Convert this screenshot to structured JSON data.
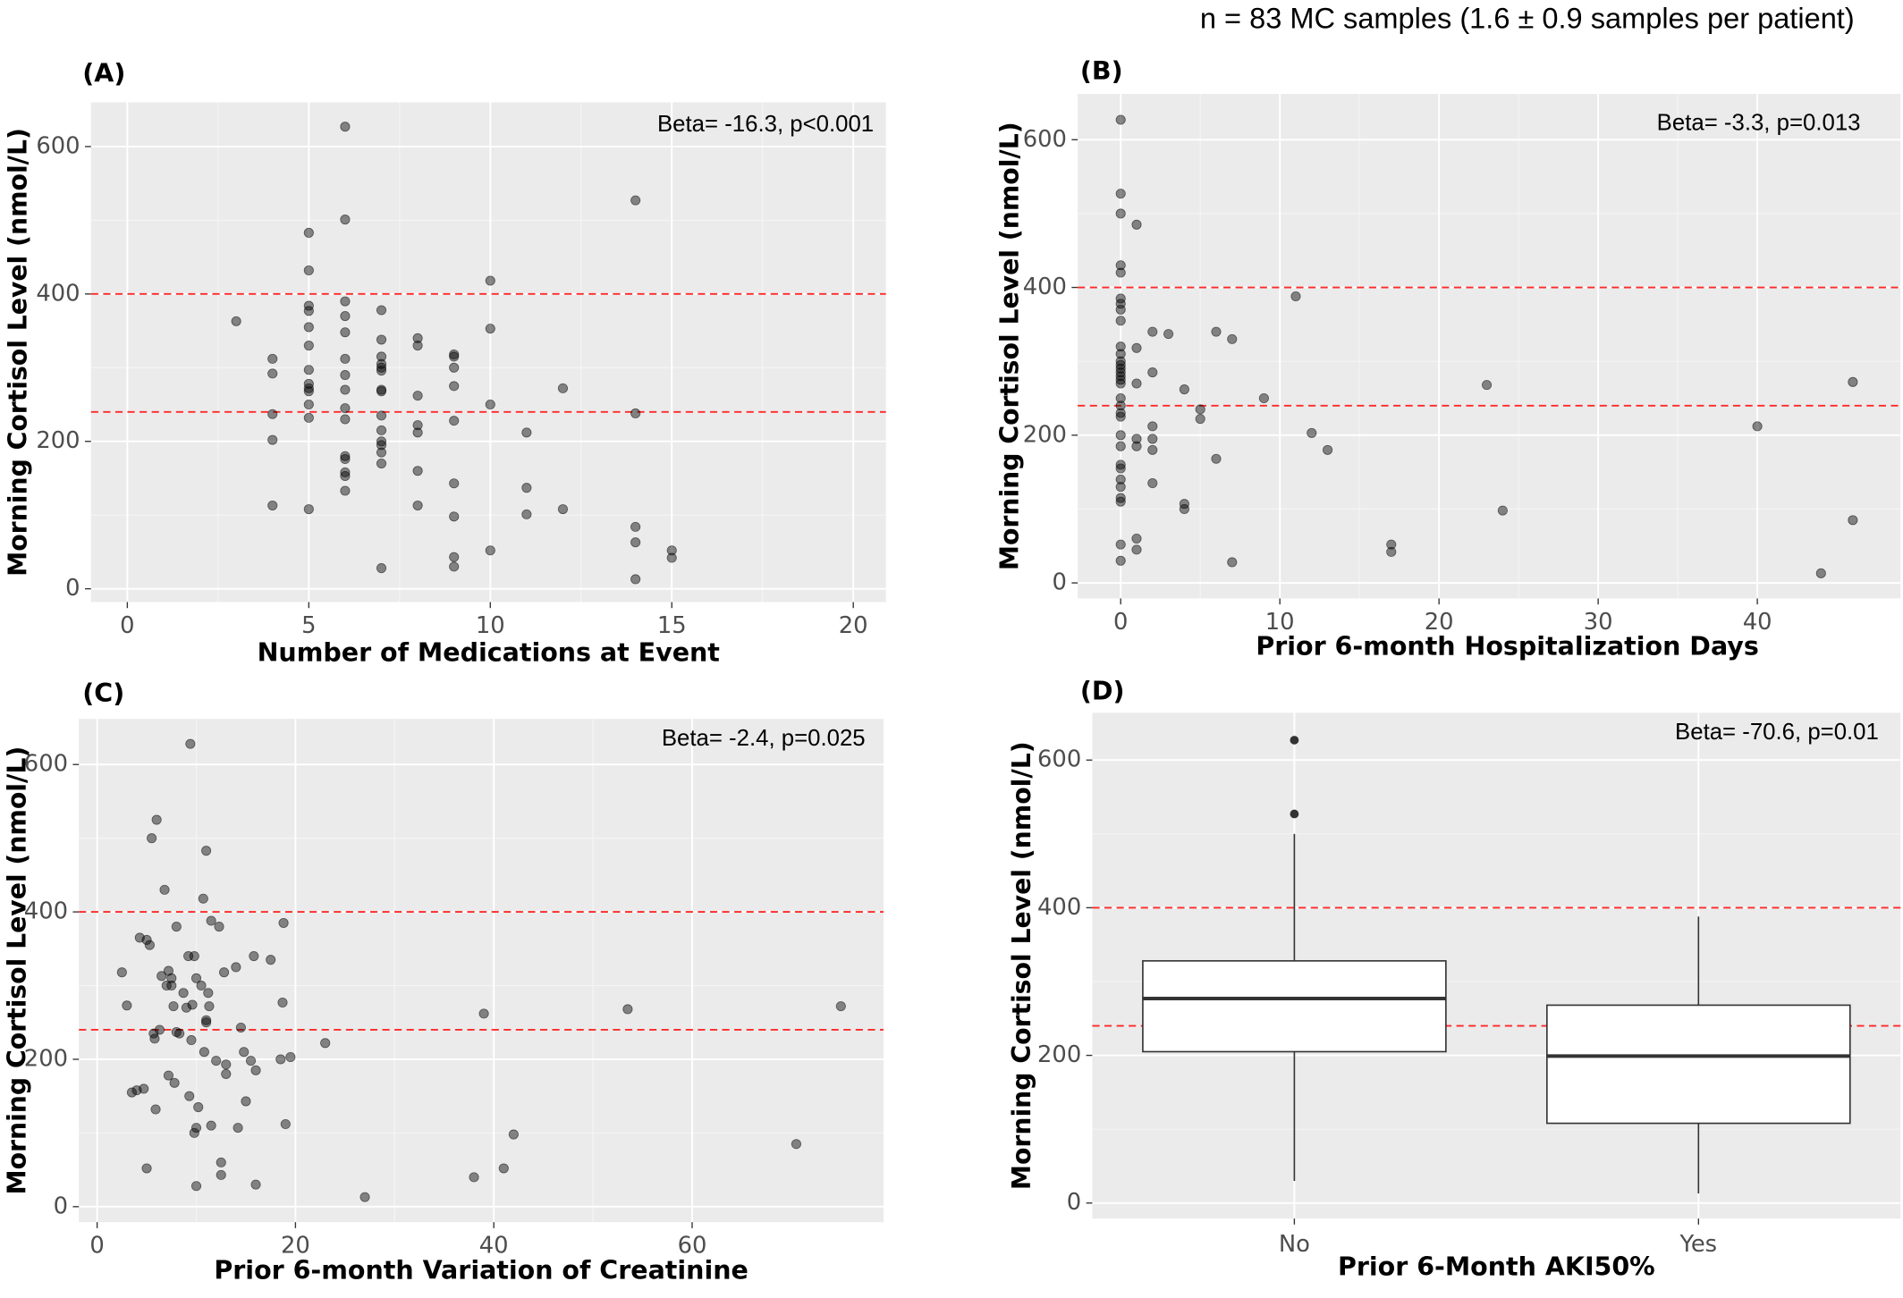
{
  "title": "n = 83 MC samples (1.6 ± 0.9 samples per patient)",
  "chart_data": [
    {
      "type": "scatter",
      "title": "(A)",
      "annotation": "Beta= -16.3, p<0.001",
      "x_label": "Number of Medications at Event",
      "y_label": "Morning Cortisol Level (nmol/L)",
      "xlim": [
        -1,
        20.9
      ],
      "ylim": [
        -18,
        660
      ],
      "xticks": [
        0,
        5,
        10,
        15,
        20
      ],
      "yticks": [
        0,
        200,
        400,
        600
      ],
      "reference_lines": [
        400,
        240
      ],
      "reference_color": "#ff2a2a",
      "color": "#000000",
      "grid": true,
      "x": [
        3,
        4,
        4,
        4,
        4,
        4,
        5,
        5,
        5,
        5,
        5,
        5,
        5,
        5,
        5,
        5,
        5,
        5,
        5,
        6,
        6,
        6,
        6,
        6,
        6,
        6,
        6,
        6,
        6,
        6,
        6,
        6,
        6,
        6,
        7,
        7,
        7,
        7,
        7,
        7,
        7,
        7,
        7,
        7,
        7,
        7,
        7,
        7,
        7,
        8,
        8,
        8,
        8,
        8,
        8,
        8,
        9,
        9,
        9,
        9,
        9,
        9,
        9,
        9,
        9,
        10,
        10,
        10,
        10,
        11,
        11,
        11,
        12,
        12,
        14,
        14,
        14,
        14,
        14,
        15,
        15
      ],
      "values": [
        363,
        312,
        292,
        237,
        202,
        113,
        483,
        432,
        384,
        377,
        355,
        330,
        297,
        278,
        272,
        268,
        250,
        232,
        108,
        627,
        501,
        390,
        370,
        348,
        312,
        290,
        270,
        245,
        230,
        180,
        176,
        158,
        153,
        133,
        378,
        338,
        315,
        305,
        300,
        296,
        270,
        268,
        235,
        215,
        200,
        195,
        185,
        170,
        28,
        340,
        330,
        262,
        222,
        212,
        160,
        113,
        318,
        315,
        300,
        275,
        228,
        143,
        98,
        43,
        30,
        418,
        353,
        250,
        52,
        212,
        137,
        101,
        272,
        108,
        527,
        238,
        84,
        63,
        13,
        52,
        42
      ]
    },
    {
      "type": "scatter",
      "title": "(B)",
      "annotation": "Beta= -3.3, p=0.013",
      "x_label": "Prior 6-month Hospitalization Days",
      "y_label": "Morning Cortisol Level (nmol/L)",
      "xlim": [
        -2.7,
        49
      ],
      "ylim": [
        -21,
        662
      ],
      "xticks": [
        0,
        10,
        20,
        30,
        40
      ],
      "yticks": [
        0,
        200,
        400,
        600
      ],
      "reference_lines": [
        400,
        240
      ],
      "reference_color": "#ff2a2a",
      "color": "#000000",
      "grid": true,
      "x": [
        0,
        0,
        0,
        0,
        0,
        0,
        0,
        0,
        0,
        0,
        0,
        0,
        0,
        0,
        0,
        0,
        0,
        0,
        0,
        0,
        0,
        0,
        0,
        0,
        0,
        0,
        0,
        0,
        0,
        0,
        0,
        0,
        1,
        1,
        1,
        1,
        1,
        1,
        1,
        2,
        2,
        2,
        2,
        2,
        2,
        3,
        4,
        4,
        4,
        5,
        5,
        6,
        6,
        7,
        7,
        9,
        11,
        12,
        13,
        17,
        17,
        23,
        24,
        40,
        44,
        46,
        46
      ],
      "values": [
        627,
        527,
        500,
        430,
        420,
        385,
        378,
        370,
        355,
        320,
        310,
        300,
        295,
        290,
        285,
        280,
        275,
        270,
        250,
        240,
        230,
        225,
        200,
        185,
        160,
        155,
        140,
        130,
        115,
        110,
        52,
        30,
        485,
        318,
        270,
        195,
        185,
        60,
        45,
        340,
        285,
        212,
        195,
        180,
        135,
        337,
        262,
        107,
        100,
        235,
        222,
        340,
        168,
        330,
        28,
        250,
        388,
        203,
        180,
        52,
        42,
        268,
        98,
        212,
        13,
        272,
        85
      ]
    },
    {
      "type": "scatter",
      "title": "(C)",
      "annotation": "Beta= -2.4, p=0.025",
      "x_label": "Prior 6-month Variation of Creatinine",
      "y_label": "Morning Cortisol Level (nmol/L)",
      "xlim": [
        -1.84,
        79.3
      ],
      "ylim": [
        -21,
        662
      ],
      "xticks": [
        0,
        20,
        40,
        60
      ],
      "yticks": [
        0,
        200,
        400,
        600
      ],
      "reference_lines": [
        400,
        240
      ],
      "reference_color": "#ff2a2a",
      "color": "#000000",
      "grid": true,
      "x": [
        2.5,
        3,
        3.5,
        4,
        4.3,
        4.7,
        5,
        5,
        5.3,
        5.5,
        5.7,
        5.8,
        5.9,
        6,
        6.3,
        6.5,
        6.8,
        7,
        7.2,
        7.2,
        7.5,
        7.5,
        7.7,
        7.8,
        8,
        8,
        8.3,
        8.7,
        9,
        9.2,
        9.3,
        9.4,
        9.5,
        9.6,
        9.8,
        9.8,
        10,
        10,
        10,
        10.2,
        10.5,
        10.7,
        10.8,
        11,
        11,
        11,
        11.2,
        11.3,
        11.5,
        11.5,
        12,
        12.3,
        12.5,
        12.5,
        12.8,
        13,
        13,
        14,
        14.2,
        14.5,
        14.8,
        15,
        15.5,
        15.8,
        16,
        16,
        17.5,
        18.5,
        18.7,
        18.8,
        19,
        19.5,
        23,
        27,
        38,
        39,
        41,
        42,
        53.5,
        70.5,
        75
      ],
      "values": [
        318,
        273,
        155,
        158,
        365,
        160,
        362,
        52,
        355,
        500,
        235,
        228,
        132,
        525,
        240,
        313,
        430,
        300,
        178,
        320,
        310,
        300,
        272,
        168,
        380,
        237,
        235,
        290,
        270,
        340,
        150,
        628,
        226,
        274,
        340,
        100,
        310,
        107,
        28,
        135,
        300,
        418,
        210,
        483,
        253,
        250,
        290,
        272,
        388,
        110,
        198,
        380,
        60,
        43,
        318,
        193,
        180,
        325,
        107,
        243,
        210,
        143,
        198,
        340,
        185,
        30,
        335,
        200,
        277,
        385,
        112,
        203,
        222,
        13,
        40,
        262,
        52,
        98,
        268,
        85,
        272
      ]
    },
    {
      "type": "box",
      "title": "(D)",
      "annotation": "Beta= -70.6, p=0.01",
      "x_label": "Prior 6-Month AKI50%",
      "y_label": "Morning Cortisol Level (nmol/L)",
      "ylim": [
        -21,
        664
      ],
      "yticks": [
        0,
        200,
        400,
        600
      ],
      "reference_lines": [
        400,
        240
      ],
      "reference_color": "#ff2a2a",
      "color": "#333333",
      "grid": true,
      "categories": [
        "No",
        "Yes"
      ],
      "boxes": [
        {
          "whisker_low": 30,
          "q1": 205,
          "median": 277,
          "q3": 328,
          "whisker_high": 500,
          "outliers": [
            527,
            627
          ]
        },
        {
          "whisker_low": 13,
          "q1": 108,
          "median": 199,
          "q3": 268,
          "whisker_high": 388,
          "outliers": []
        }
      ]
    }
  ]
}
